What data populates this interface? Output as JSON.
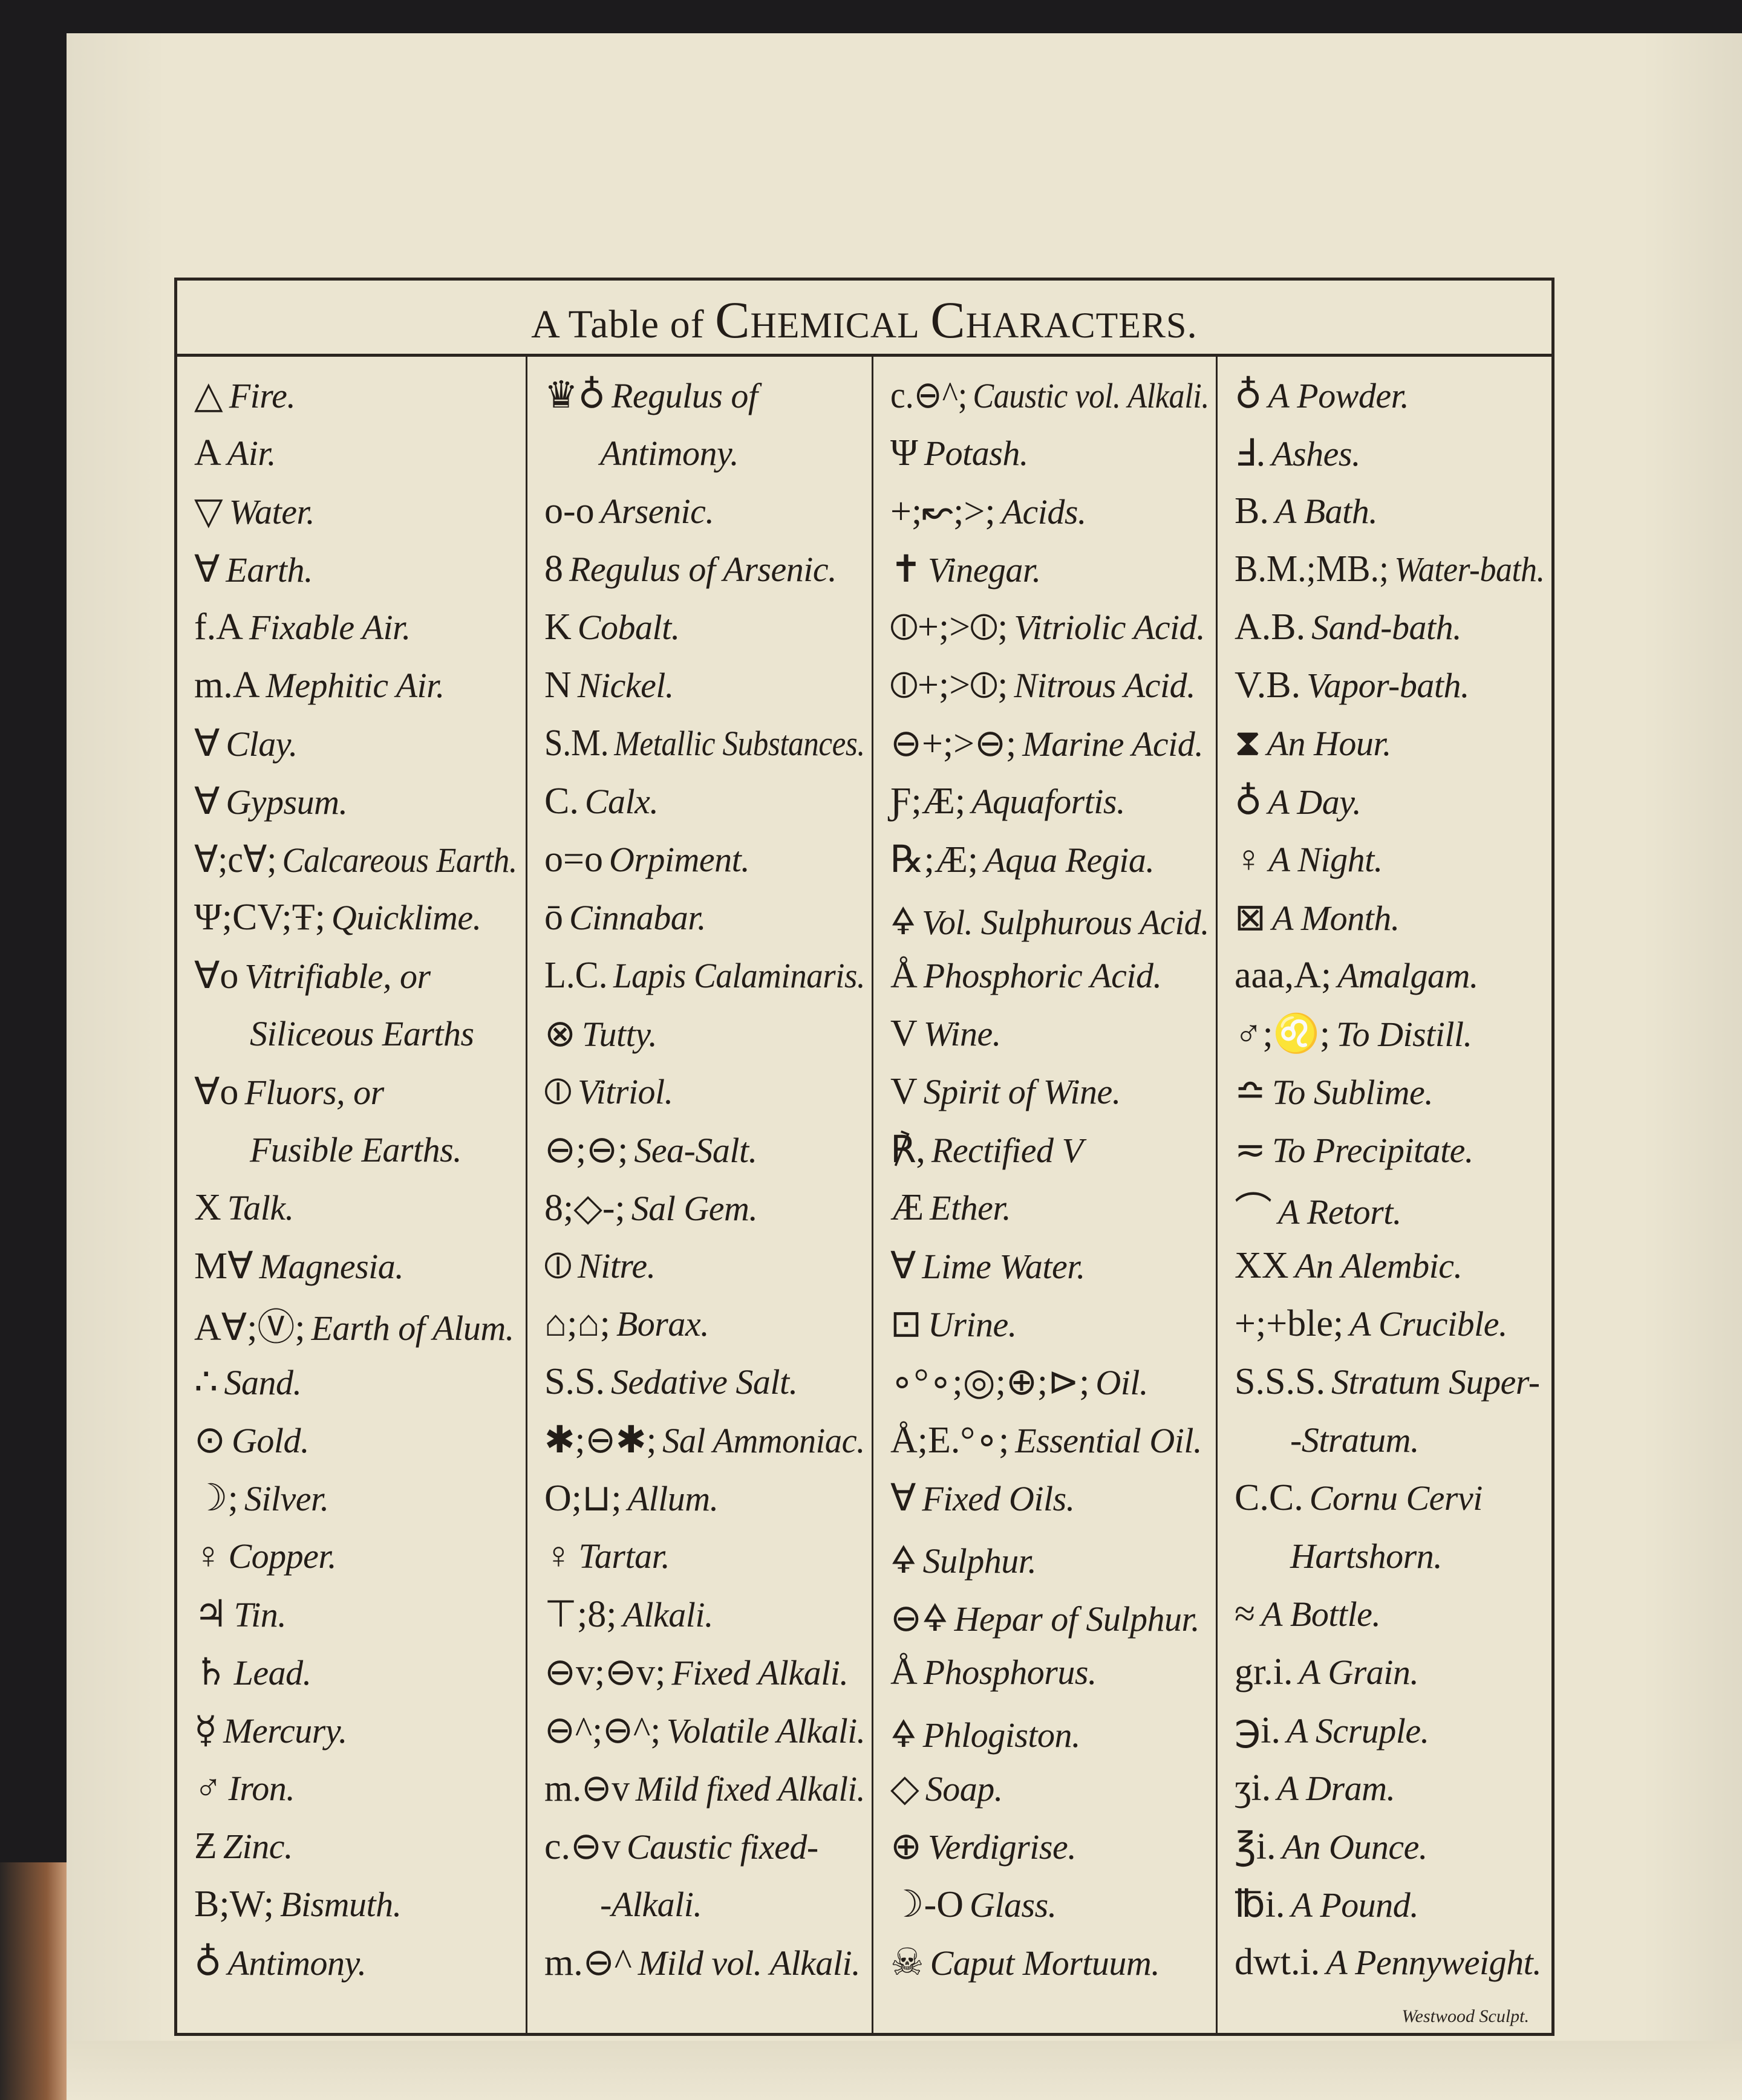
{
  "title": {
    "prefix": "A Table of",
    "word1": "Chemical",
    "word2": "Characters",
    "suffix": "."
  },
  "engraver_signature": "Westwood Sculpt.",
  "columns": [
    {
      "rows": [
        {
          "sym": "△",
          "label": "Fire."
        },
        {
          "sym": "A",
          "label": "Air."
        },
        {
          "sym": "▽",
          "label": "Water."
        },
        {
          "sym": "∀",
          "label": "Earth."
        },
        {
          "sym": "f.A",
          "label": "Fixable Air."
        },
        {
          "sym": "m.A",
          "label": "Mephitic Air."
        },
        {
          "sym": "∀",
          "label": "Clay."
        },
        {
          "sym": "∀",
          "label": "Gypsum."
        },
        {
          "sym": "∀;c∀;",
          "label": "Calcareous Earth."
        },
        {
          "sym": "Ψ;CV;Ŧ;",
          "label": "Quicklime."
        },
        {
          "sym": "∀o",
          "label": "Vitrifiable, or"
        },
        {
          "sym": "",
          "label": "Siliceous Earths",
          "cont": true
        },
        {
          "sym": "∀o",
          "label": "Fluors, or"
        },
        {
          "sym": "",
          "label": "Fusible Earths.",
          "cont": true
        },
        {
          "sym": "X",
          "label": "Talk."
        },
        {
          "sym": "M∀",
          "label": "Magnesia."
        },
        {
          "sym": "A∀;Ⓥ;",
          "label": "Earth of Alum."
        },
        {
          "sym": "∴",
          "label": "Sand."
        },
        {
          "sym": "⊙",
          "label": "Gold."
        },
        {
          "sym": "☽;",
          "label": "Silver."
        },
        {
          "sym": "♀",
          "label": "Copper."
        },
        {
          "sym": "♃",
          "label": "Tin."
        },
        {
          "sym": "♄",
          "label": "Lead."
        },
        {
          "sym": "☿",
          "label": "Mercury."
        },
        {
          "sym": "♂",
          "label": "Iron."
        },
        {
          "sym": "Ƶ",
          "label": "Zinc."
        },
        {
          "sym": "B;W;",
          "label": "Bismuth."
        },
        {
          "sym": "♁",
          "label": "Antimony."
        }
      ]
    },
    {
      "rows": [
        {
          "sym": "♛♁",
          "label": "Regulus of"
        },
        {
          "sym": "",
          "label": "Antimony.",
          "cont": true
        },
        {
          "sym": "o-o",
          "label": "Arsenic."
        },
        {
          "sym": "8",
          "label": "Regulus of Arsenic."
        },
        {
          "sym": "K",
          "label": "Cobalt."
        },
        {
          "sym": "N",
          "label": "Nickel."
        },
        {
          "sym": "S.M.",
          "label": "Metallic Substances."
        },
        {
          "sym": "C.",
          "label": "Calx."
        },
        {
          "sym": "o=o",
          "label": "Orpiment."
        },
        {
          "sym": "ō",
          "label": "Cinnabar."
        },
        {
          "sym": "L.C.",
          "label": "Lapis Calaminaris."
        },
        {
          "sym": "⊗",
          "label": "Tutty."
        },
        {
          "sym": "⦶",
          "label": "Vitriol."
        },
        {
          "sym": "⊖;⊖;",
          "label": "Sea-Salt."
        },
        {
          "sym": "8;◇-;",
          "label": "Sal Gem."
        },
        {
          "sym": "⦶",
          "label": "Nitre."
        },
        {
          "sym": "⌂;⌂;",
          "label": "Borax."
        },
        {
          "sym": "S.S.",
          "label": "Sedative Salt."
        },
        {
          "sym": "✱;⊖✱;",
          "label": "Sal Ammoniac."
        },
        {
          "sym": "O;⊔;",
          "label": "Allum."
        },
        {
          "sym": "♀",
          "label": "Tartar."
        },
        {
          "sym": "⊤;8;",
          "label": "Alkali."
        },
        {
          "sym": "⊖v;⊖v;",
          "label": "Fixed Alkali."
        },
        {
          "sym": "⊖^;⊖^;",
          "label": "Volatile Alkali."
        },
        {
          "sym": "m.⊖v",
          "label": "Mild fixed Alkali."
        },
        {
          "sym": "c.⊖v",
          "label": "Caustic fixed-"
        },
        {
          "sym": "",
          "label": "-Alkali.",
          "cont": true
        },
        {
          "sym": "m.⊖^",
          "label": "Mild vol. Alkali."
        }
      ]
    },
    {
      "rows": [
        {
          "sym": "c.⊖^;",
          "label": "Caustic vol. Alkali."
        },
        {
          "sym": "Ψ",
          "label": "Potash."
        },
        {
          "sym": "+;↜;>;",
          "label": "Acids."
        },
        {
          "sym": "✝",
          "label": "Vinegar."
        },
        {
          "sym": "⦶+;>⦶;",
          "label": "Vitriolic Acid."
        },
        {
          "sym": "⦶+;>⦶;",
          "label": "Nitrous Acid."
        },
        {
          "sym": "⊖+;>⊖;",
          "label": "Marine Acid."
        },
        {
          "sym": "Ƒ;Æ;",
          "label": "Aquafortis."
        },
        {
          "sym": "℞;Æ;",
          "label": "Aqua Regia."
        },
        {
          "sym": "🜍",
          "label": "Vol. Sulphurous Acid."
        },
        {
          "sym": "Å",
          "label": "Phosphoric Acid."
        },
        {
          "sym": "V",
          "label": "Wine."
        },
        {
          "sym": "V",
          "label": "Spirit of Wine."
        },
        {
          "sym": "℟,",
          "label": "Rectified V"
        },
        {
          "sym": "Æ",
          "label": "Ether."
        },
        {
          "sym": "∀",
          "label": "Lime Water."
        },
        {
          "sym": "⊡",
          "label": "Urine."
        },
        {
          "sym": "∘°∘;◎;⊕;⊳;",
          "label": "Oil."
        },
        {
          "sym": "Å;E.°∘;",
          "label": "Essential Oil."
        },
        {
          "sym": "∀",
          "label": "Fixed Oils."
        },
        {
          "sym": "🜍",
          "label": "Sulphur."
        },
        {
          "sym": "⊖🜍",
          "label": "Hepar of Sulphur."
        },
        {
          "sym": "Å",
          "label": "Phosphorus."
        },
        {
          "sym": "🜍",
          "label": "Phlogiston."
        },
        {
          "sym": "◇",
          "label": "Soap."
        },
        {
          "sym": "⊕",
          "label": "Verdigrise."
        },
        {
          "sym": "☽-O",
          "label": "Glass."
        },
        {
          "sym": "☠",
          "label": "Caput Mortuum."
        }
      ]
    },
    {
      "rows": [
        {
          "sym": "♁",
          "label": "A Powder."
        },
        {
          "sym": "Ⅎ.",
          "label": "Ashes."
        },
        {
          "sym": "B.",
          "label": "A Bath."
        },
        {
          "sym": "B.M.;MB.;",
          "label": "Water-bath."
        },
        {
          "sym": "A.B.",
          "label": "Sand-bath."
        },
        {
          "sym": "V.B.",
          "label": "Vapor-bath."
        },
        {
          "sym": "⧗",
          "label": "An Hour."
        },
        {
          "sym": "♁",
          "label": "A Day."
        },
        {
          "sym": "♀",
          "label": "A Night."
        },
        {
          "sym": "⊠",
          "label": "A Month."
        },
        {
          "sym": "aaa,A;",
          "label": "Amalgam."
        },
        {
          "sym": "♂;♌;",
          "label": "To Distill."
        },
        {
          "sym": "≏",
          "label": "To Sublime."
        },
        {
          "sym": "≂",
          "label": "To Precipitate."
        },
        {
          "sym": "⌒",
          "label": "A Retort."
        },
        {
          "sym": "XX",
          "label": "An Alembic."
        },
        {
          "sym": "+;+ble;",
          "label": "A Crucible."
        },
        {
          "sym": "S.S.S.",
          "label": "Stratum Super-"
        },
        {
          "sym": "",
          "label": "-Stratum.",
          "cont": true
        },
        {
          "sym": "C.C.",
          "label": "Cornu Cervi"
        },
        {
          "sym": "",
          "label": "Hartshorn.",
          "cont": true
        },
        {
          "sym": "≈",
          "label": "A Bottle."
        },
        {
          "sym": "gr.i.",
          "label": "A Grain."
        },
        {
          "sym": "℈i.",
          "label": "A Scruple."
        },
        {
          "sym": "ʒi.",
          "label": "A Dram."
        },
        {
          "sym": "℥i.",
          "label": "An Ounce."
        },
        {
          "sym": "℔i.",
          "label": "A Pound."
        },
        {
          "sym": "dwt.i.",
          "label": "A Pennyweight."
        }
      ]
    }
  ]
}
